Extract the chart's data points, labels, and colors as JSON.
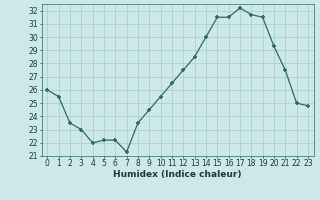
{
  "x": [
    0,
    1,
    2,
    3,
    4,
    5,
    6,
    7,
    8,
    9,
    10,
    11,
    12,
    13,
    14,
    15,
    16,
    17,
    18,
    19,
    20,
    21,
    22,
    23
  ],
  "y": [
    26,
    25.5,
    23.5,
    23,
    22,
    22.2,
    22.2,
    21.3,
    23.5,
    24.5,
    25.5,
    26.5,
    27.5,
    28.5,
    30,
    31.5,
    31.5,
    32.2,
    31.7,
    31.5,
    29.3,
    27.5,
    25,
    24.8
  ],
  "line_color": "#2e6b5e",
  "marker": "+",
  "marker_size": 3.5,
  "marker_lw": 1.2,
  "line_width": 0.9,
  "background_color": "#cce8e8",
  "grid_color": "#a8cccc",
  "xlabel": "Humidex (Indice chaleur)",
  "xlim": [
    -0.5,
    23.5
  ],
  "ylim": [
    21,
    32.5
  ],
  "yticks": [
    21,
    22,
    23,
    24,
    25,
    26,
    27,
    28,
    29,
    30,
    31,
    32
  ],
  "xticks": [
    0,
    1,
    2,
    3,
    4,
    5,
    6,
    7,
    8,
    9,
    10,
    11,
    12,
    13,
    14,
    15,
    16,
    17,
    18,
    19,
    20,
    21,
    22,
    23
  ],
  "tick_fontsize": 5.5,
  "xlabel_fontsize": 6.5,
  "tick_color": "#1a3a3a",
  "spine_color": "#2e6b5e"
}
